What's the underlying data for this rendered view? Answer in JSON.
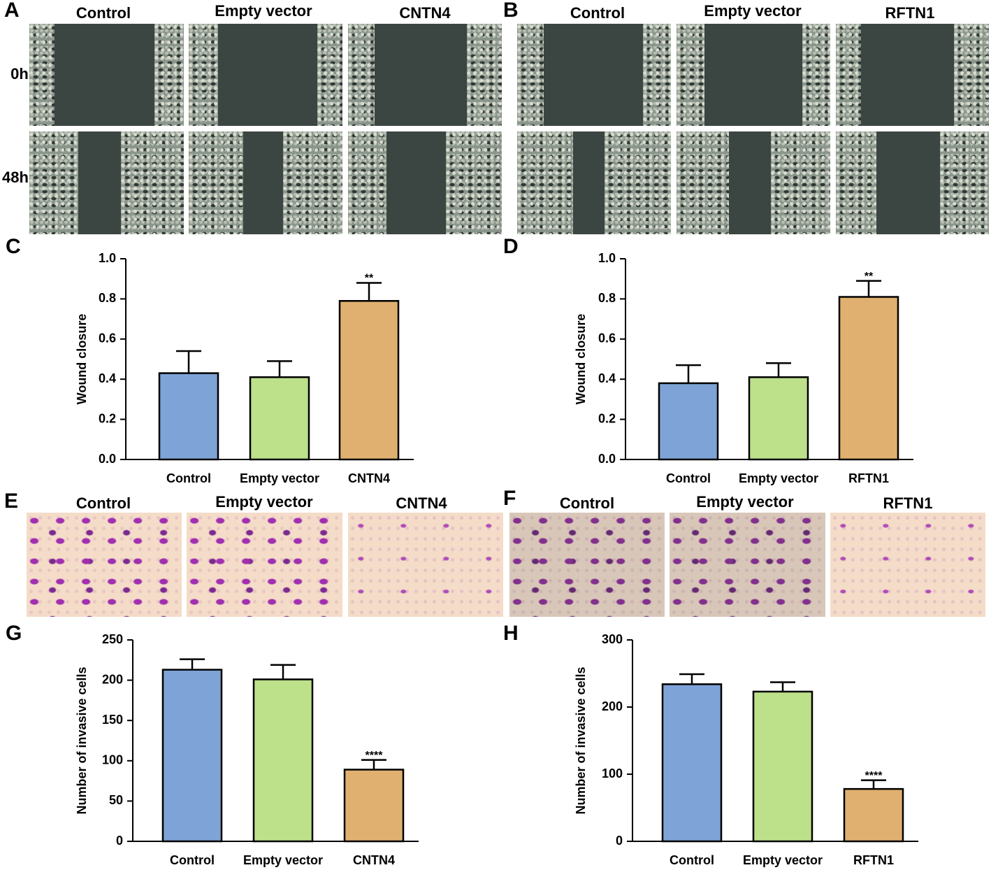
{
  "figure": {
    "panel_labels": [
      "A",
      "B",
      "C",
      "D",
      "E",
      "F",
      "G",
      "H"
    ],
    "wound_columns_a": [
      "Control",
      "Empty vector",
      "CNTN4"
    ],
    "wound_columns_b": [
      "Control",
      "Empty vector",
      "RFTN1"
    ],
    "time_rows": [
      "0h",
      "48h"
    ],
    "invasion_columns_e": [
      "Control",
      "Empty vector",
      "CNTN4"
    ],
    "invasion_columns_f": [
      "Control",
      "Empty vector",
      "RFTN1"
    ]
  },
  "chart_data": [
    {
      "type": "bar",
      "ylabel": "Wound closure",
      "categories": [
        "Control",
        "Empty vector",
        "CNTN4"
      ],
      "values": [
        0.43,
        0.41,
        0.79
      ],
      "errors": [
        0.11,
        0.08,
        0.09
      ],
      "value_annotations": [
        null,
        null,
        "**"
      ],
      "colors": [
        "#7ea3d6",
        "#bde08a",
        "#dfb06f"
      ],
      "ylim": [
        0,
        1
      ],
      "yticks": [
        {
          "value": 0,
          "label": "0.0"
        },
        0.2,
        0.4,
        0.6,
        0.8,
        {
          "value": 1,
          "label": "1.0"
        }
      ]
    },
    {
      "type": "bar",
      "ylabel": "Wound closure",
      "categories": [
        "Control",
        "Empty vector",
        "RFTN1"
      ],
      "values": [
        0.38,
        0.41,
        0.81
      ],
      "errors": [
        0.09,
        0.07,
        0.08
      ],
      "value_annotations": [
        null,
        null,
        "**"
      ],
      "colors": [
        "#7ea3d6",
        "#bde08a",
        "#dfb06f"
      ],
      "ylim": [
        0,
        1
      ],
      "yticks": [
        {
          "value": 0,
          "label": "0.0"
        },
        0.2,
        0.4,
        0.6,
        0.8,
        {
          "value": 1,
          "label": "1.0"
        }
      ]
    },
    {
      "type": "bar",
      "ylabel": "Number of invasive cells",
      "categories": [
        "Control",
        "Empty vector",
        "CNTN4"
      ],
      "values": [
        213,
        201,
        89
      ],
      "errors": [
        13,
        18,
        12
      ],
      "value_annotations": [
        null,
        null,
        "****"
      ],
      "colors": [
        "#7ea3d6",
        "#bde08a",
        "#dfb06f"
      ],
      "ylim": [
        0,
        250
      ],
      "yticks": [
        0,
        50,
        100,
        150,
        200,
        250
      ]
    },
    {
      "type": "bar",
      "ylabel": "Number of invasive cells",
      "categories": [
        "Control",
        "Empty vector",
        "RFTN1"
      ],
      "values": [
        234,
        223,
        78
      ],
      "errors": [
        15,
        14,
        13
      ],
      "value_annotations": [
        null,
        null,
        "****"
      ],
      "colors": [
        "#7ea3d6",
        "#bde08a",
        "#dfb06f"
      ],
      "ylim": [
        0,
        300
      ],
      "yticks": [
        0,
        100,
        200,
        300
      ]
    }
  ]
}
